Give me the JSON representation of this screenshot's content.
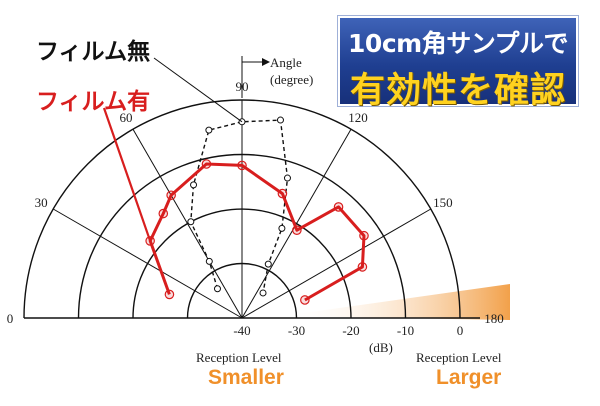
{
  "legend": {
    "no_film_label": "フィルム無",
    "film_label": "フィルム有"
  },
  "banner": {
    "line1": "10cm角サンプルで",
    "line2": "有効性を確認"
  },
  "annotations": {
    "angle_label_line1": "Angle",
    "angle_label_line2": "(degree)",
    "db_unit": "(dB)",
    "reception_left": "Reception Level",
    "reception_right": "Reception Level",
    "smaller": "Smaller",
    "larger": "Larger"
  },
  "colors": {
    "film": "#d81e1e",
    "no_film": "#111111",
    "banner_bg": "#2a4a9e",
    "banner_accent": "#ffd21f",
    "scale_orange": "#f0902a"
  },
  "chart_data": {
    "type": "polar",
    "angle_unit": "degree",
    "radial_unit": "dB",
    "radial_range": [
      -40,
      0
    ],
    "angular_range": [
      0,
      180
    ],
    "angle_ticks": [
      0,
      30,
      60,
      90,
      120,
      150,
      180
    ],
    "radial_ticks": [
      -40,
      -30,
      -20,
      -10,
      0
    ],
    "grid": true,
    "series": [
      {
        "name": "フィルム無",
        "style": "dashed",
        "color": "#111111",
        "points": [
          {
            "angle": 50,
            "level": -33
          },
          {
            "angle": 60,
            "level": -28
          },
          {
            "angle": 62,
            "level": -20
          },
          {
            "angle": 70,
            "level": -14
          },
          {
            "angle": 80,
            "level": -5
          },
          {
            "angle": 90,
            "level": -4
          },
          {
            "angle": 101,
            "level": -3
          },
          {
            "angle": 108,
            "level": -13
          },
          {
            "angle": 114,
            "level": -22
          },
          {
            "angle": 116,
            "level": -29
          },
          {
            "angle": 130,
            "level": -34
          }
        ]
      },
      {
        "name": "フィルム有",
        "style": "solid",
        "color": "#d81e1e",
        "points": [
          {
            "angle": 18,
            "level": -26
          },
          {
            "angle": 40,
            "level": -18
          },
          {
            "angle": 53,
            "level": -16
          },
          {
            "angle": 60,
            "level": -14
          },
          {
            "angle": 77,
            "level": -11
          },
          {
            "angle": 90,
            "level": -12
          },
          {
            "angle": 108,
            "level": -16
          },
          {
            "angle": 122,
            "level": -21
          },
          {
            "angle": 131,
            "level": -13
          },
          {
            "angle": 146,
            "level": -13
          },
          {
            "angle": 157,
            "level": -16
          },
          {
            "angle": 164,
            "level": -28
          }
        ]
      }
    ]
  }
}
